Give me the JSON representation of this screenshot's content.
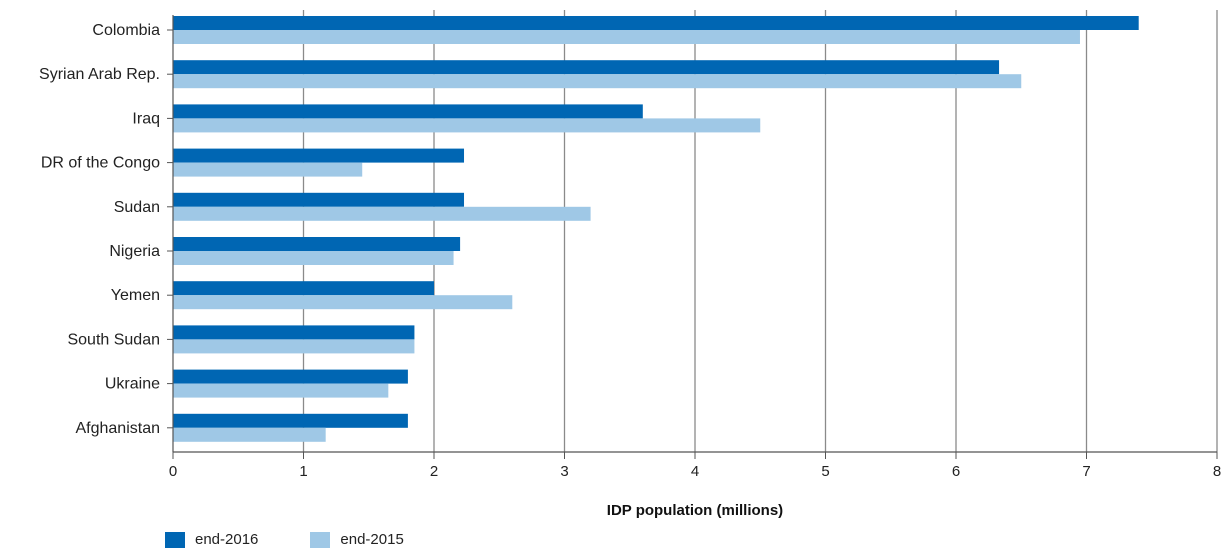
{
  "chart_data": {
    "type": "bar",
    "orientation": "horizontal",
    "categories": [
      "Colombia",
      "Syrian Arab Rep.",
      "Iraq",
      "DR of the Congo",
      "Sudan",
      "Nigeria",
      "Yemen",
      "South Sudan",
      "Ukraine",
      "Afghanistan"
    ],
    "series": [
      {
        "name": "end-2016",
        "color": "#0066b3",
        "values": [
          7.4,
          6.33,
          3.6,
          2.23,
          2.23,
          2.2,
          2.0,
          1.85,
          1.8,
          1.8
        ]
      },
      {
        "name": "end-2015",
        "color": "#9fc8e6",
        "values": [
          6.95,
          6.5,
          4.5,
          1.45,
          3.2,
          2.15,
          2.6,
          1.85,
          1.65,
          1.17
        ]
      }
    ],
    "xlabel": "IDP population (millions)",
    "xlim": [
      0,
      8
    ],
    "xticks": [
      "0",
      "1",
      "2",
      "3",
      "4",
      "5",
      "6",
      "7",
      "8"
    ],
    "grid": "vertical",
    "legend_position": "bottom-left"
  }
}
